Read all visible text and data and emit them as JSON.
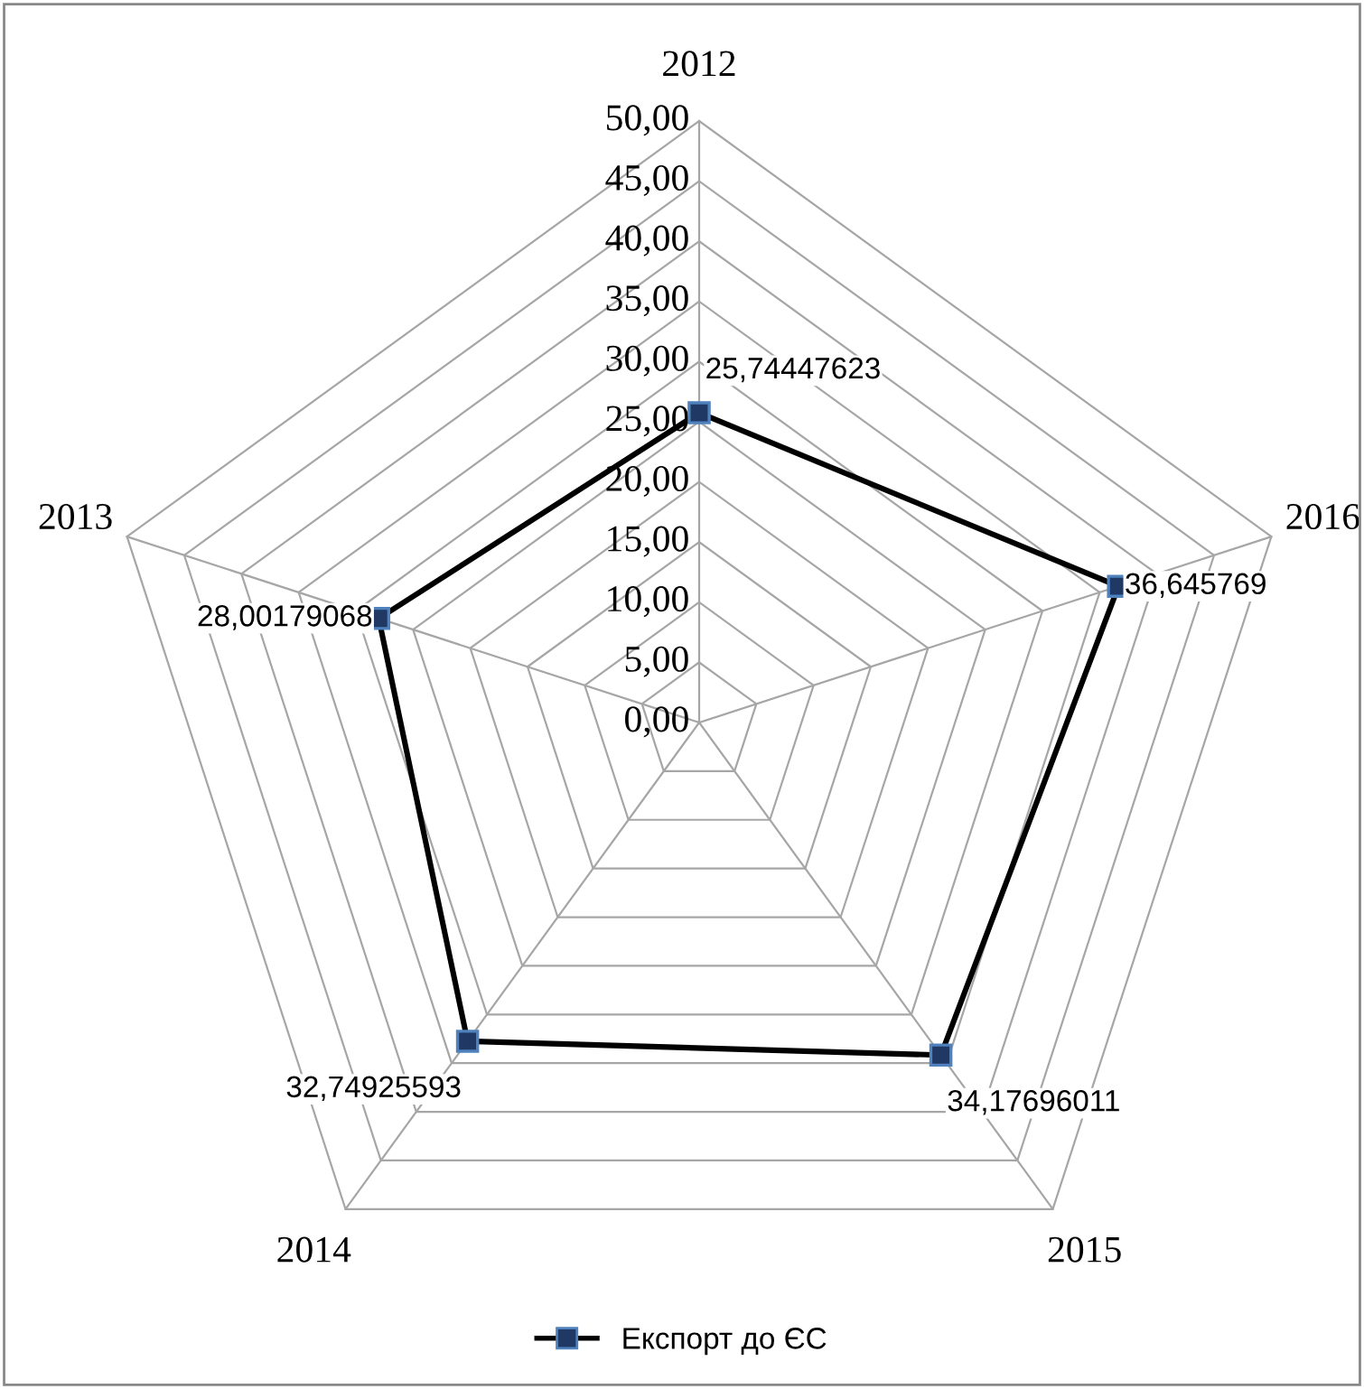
{
  "chart_data": {
    "type": "radar",
    "categories": [
      "2012",
      "2016",
      "2015",
      "2014",
      "2013"
    ],
    "series": [
      {
        "name": "Експорт до ЄС",
        "color": "#000000",
        "values": [
          25.74447623,
          36.645769,
          34.17696011,
          32.74925593,
          28.00179068
        ],
        "value_labels": [
          "25,74447623",
          "36,645769",
          "34,17696011",
          "32,74925593",
          "28,00179068"
        ]
      }
    ],
    "ylim": [
      0,
      50
    ],
    "yticks": [
      {
        "value": 0,
        "label": "0,00"
      },
      {
        "value": 5,
        "label": "5,00"
      },
      {
        "value": 10,
        "label": "10,00"
      },
      {
        "value": 15,
        "label": "15,00"
      },
      {
        "value": 20,
        "label": "20,00"
      },
      {
        "value": 25,
        "label": "25,00"
      },
      {
        "value": 30,
        "label": "30,00"
      },
      {
        "value": 35,
        "label": "35,00"
      },
      {
        "value": 40,
        "label": "40,00"
      },
      {
        "value": 45,
        "label": "45,00"
      },
      {
        "value": 50,
        "label": "50,00"
      }
    ],
    "grid": true,
    "marker": "square",
    "line_style": "solid",
    "legend": "bottom"
  }
}
